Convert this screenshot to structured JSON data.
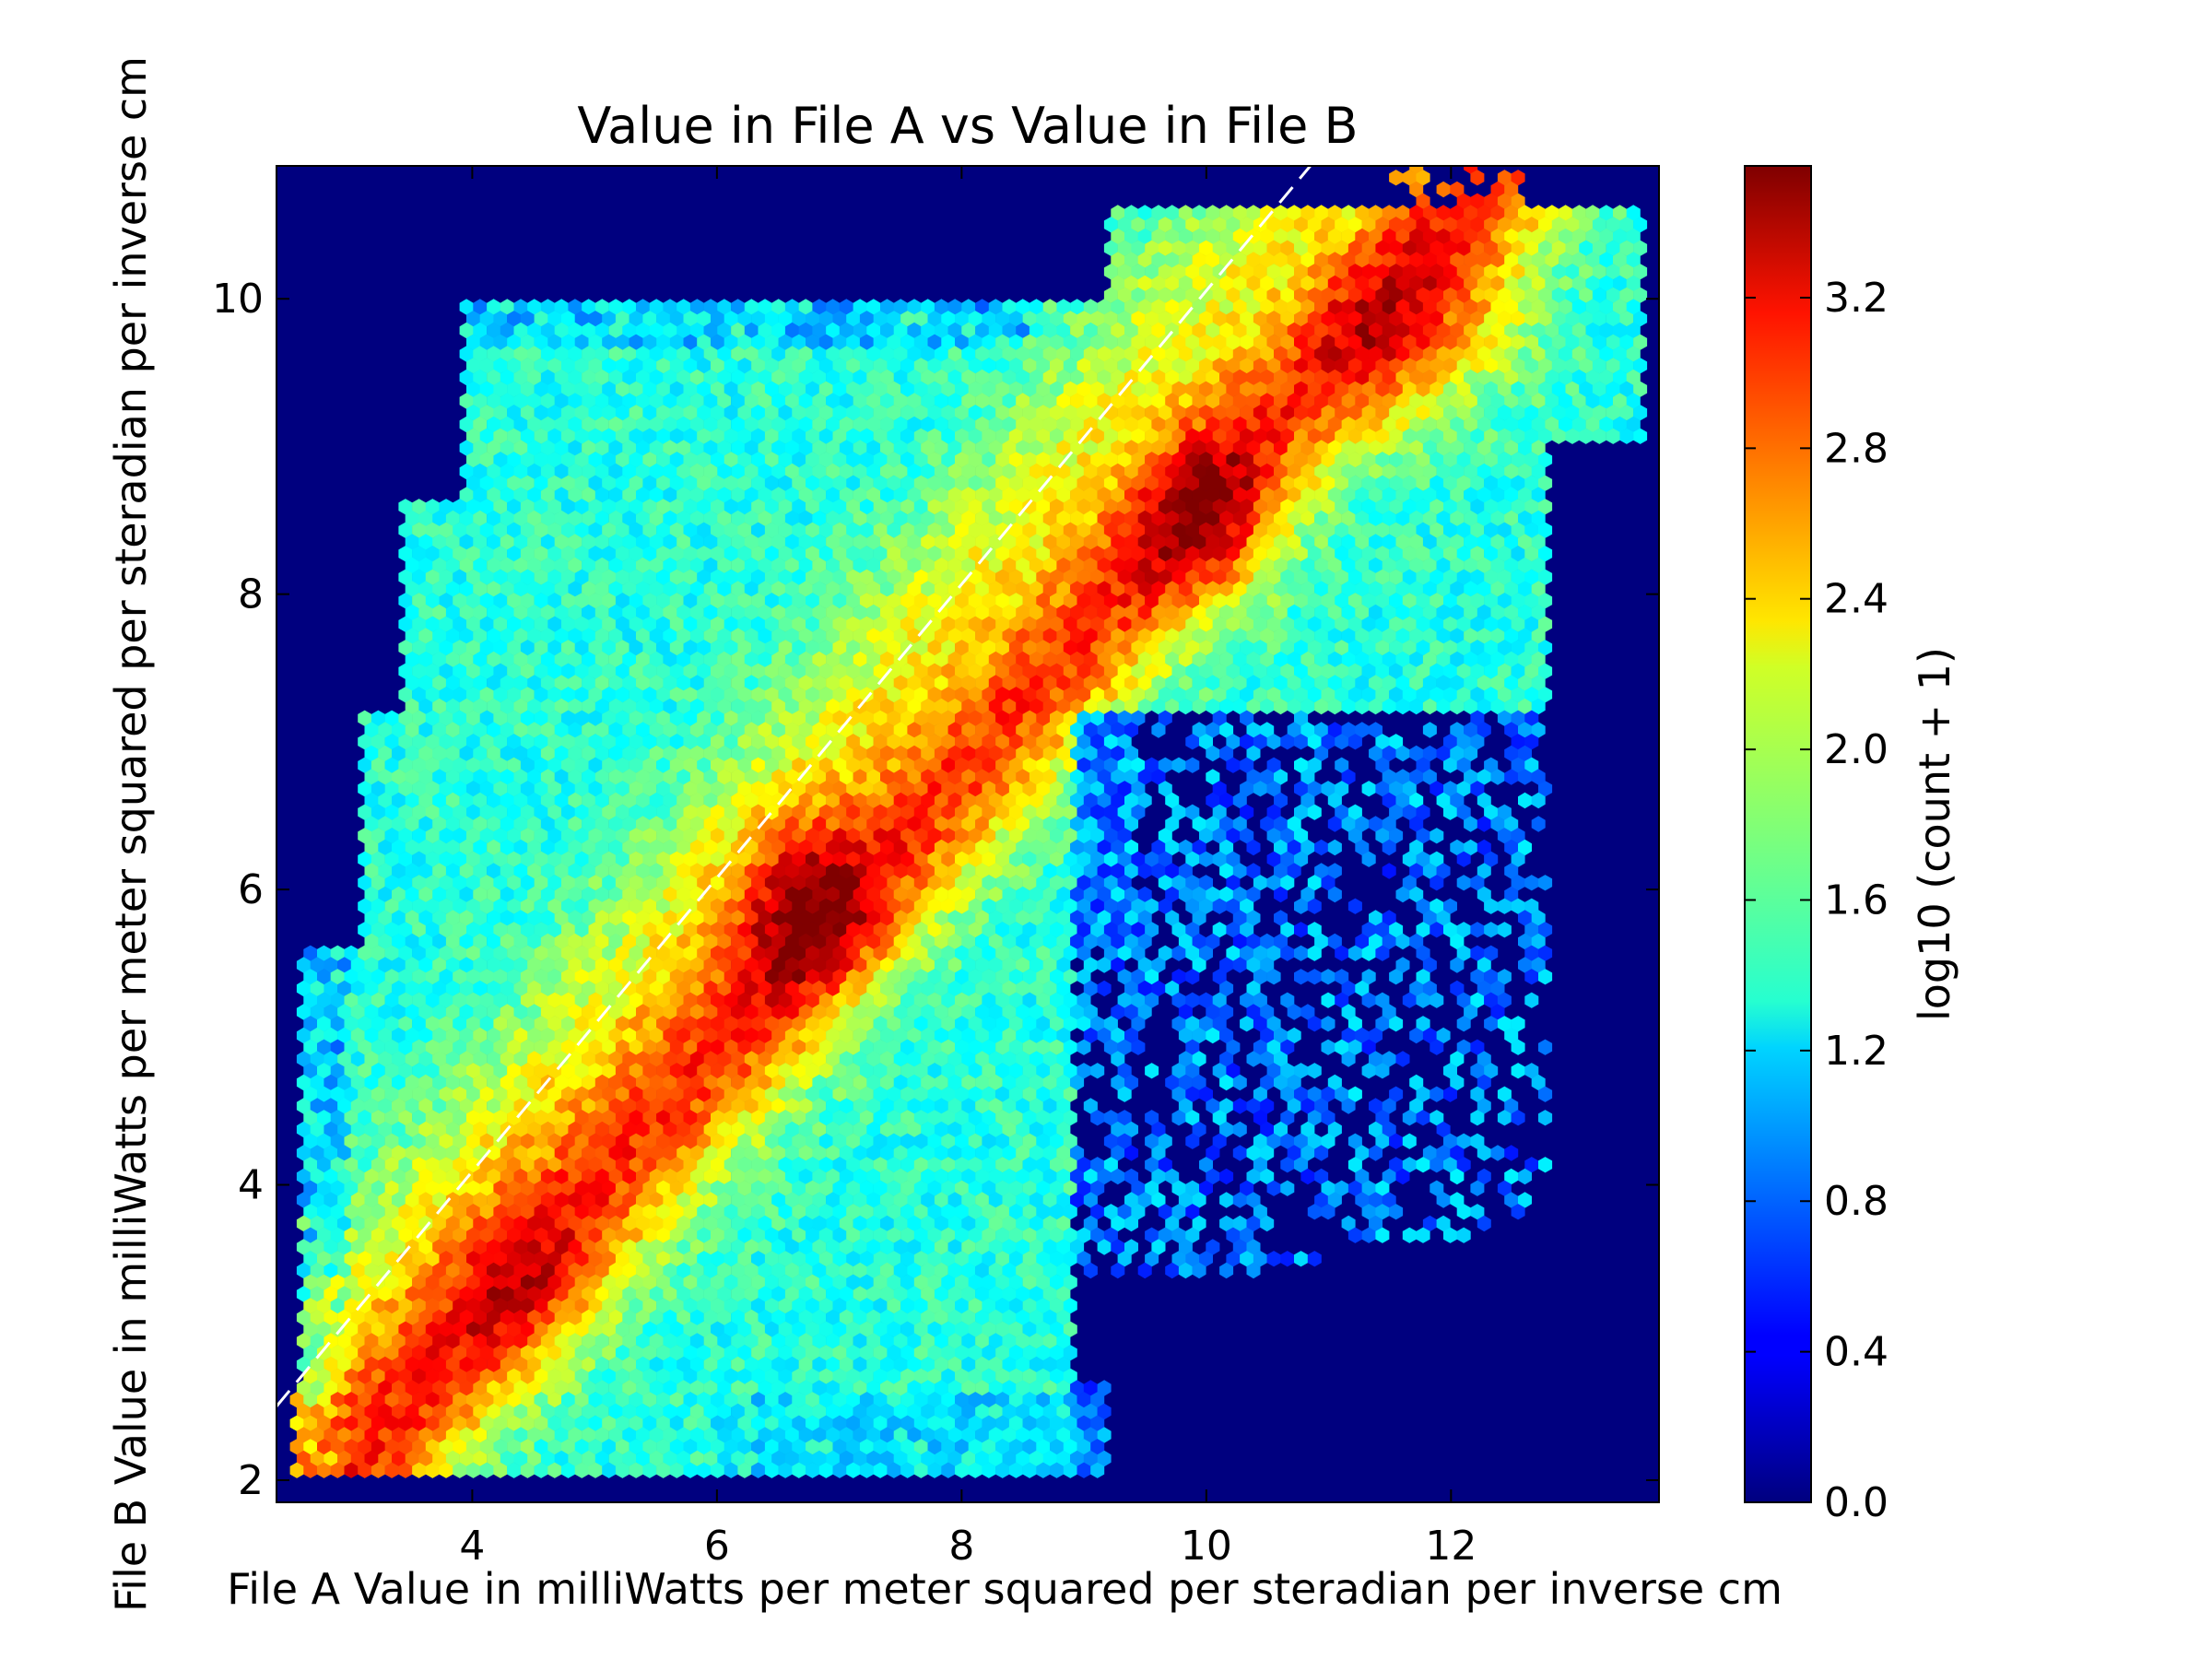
{
  "chart_data": {
    "type": "heatmap",
    "subtype": "hexbin",
    "title": "Value in File A vs Value in File B",
    "xlabel": "File A Value in milliWatts per meter squared per steradian per inverse cm",
    "ylabel": "File B Value in milliWatts per meter squared per steradian per inverse cm",
    "colorbar_label": "log10 (count + 1)",
    "xlim": [
      2.4,
      13.7
    ],
    "ylim": [
      1.85,
      10.9
    ],
    "x_ticks": [
      "4",
      "6",
      "8",
      "10",
      "12"
    ],
    "y_ticks": [
      "2",
      "4",
      "6",
      "8",
      "10"
    ],
    "colorbar_ticks": [
      "0.0",
      "0.4",
      "0.8",
      "1.2",
      "1.6",
      "2.0",
      "2.4",
      "2.8",
      "3.2"
    ],
    "colorbar_range": [
      0.0,
      3.55
    ],
    "colormap": "jet",
    "background_color": "#00007f",
    "reference_line": {
      "style": "dashed",
      "color": "#ffffff",
      "x": [
        2.4,
        10.85
      ],
      "y": [
        2.5,
        10.9
      ]
    },
    "density_peaks": [
      {
        "x": 6.7,
        "y": 5.9,
        "value": 3.45
      },
      {
        "x": 10.0,
        "y": 8.5,
        "value": 3.4
      },
      {
        "x": 4.4,
        "y": 3.3,
        "value": 3.0
      },
      {
        "x": 11.5,
        "y": 9.6,
        "value": 3.2
      },
      {
        "x": 12.3,
        "y": 9.9,
        "value": 3.1
      }
    ],
    "grid": false
  }
}
